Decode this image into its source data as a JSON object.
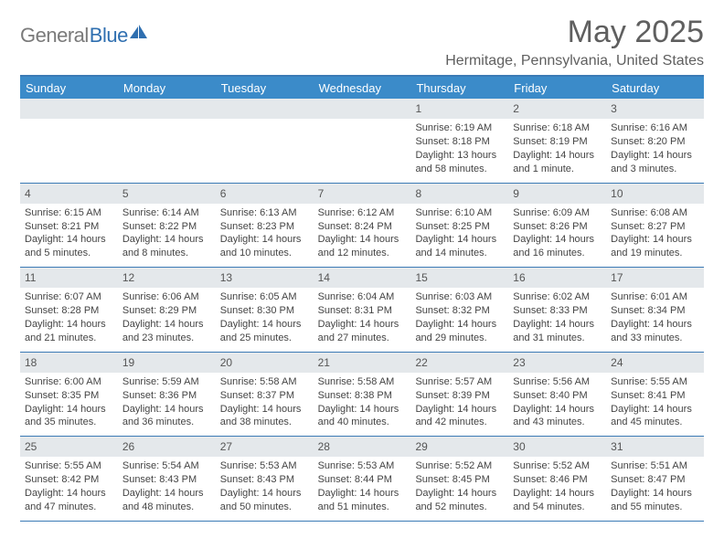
{
  "logo": {
    "word1": "General",
    "word2": "Blue"
  },
  "title": "May 2025",
  "location": "Hermitage, Pennsylvania, United States",
  "colors": {
    "header_bg": "#3b8bc9",
    "divider": "#3b7ab5",
    "band_bg": "#e4e8eb",
    "logo_gray": "#7a7a7a",
    "logo_blue": "#2f6fb0",
    "text": "#5f5f5f"
  },
  "day_labels": [
    "Sunday",
    "Monday",
    "Tuesday",
    "Wednesday",
    "Thursday",
    "Friday",
    "Saturday"
  ],
  "weeks": [
    [
      {
        "n": "",
        "lines": []
      },
      {
        "n": "",
        "lines": []
      },
      {
        "n": "",
        "lines": []
      },
      {
        "n": "",
        "lines": []
      },
      {
        "n": "1",
        "lines": [
          "Sunrise: 6:19 AM",
          "Sunset: 8:18 PM",
          "Daylight: 13 hours",
          "and 58 minutes."
        ]
      },
      {
        "n": "2",
        "lines": [
          "Sunrise: 6:18 AM",
          "Sunset: 8:19 PM",
          "Daylight: 14 hours",
          "and 1 minute."
        ]
      },
      {
        "n": "3",
        "lines": [
          "Sunrise: 6:16 AM",
          "Sunset: 8:20 PM",
          "Daylight: 14 hours",
          "and 3 minutes."
        ]
      }
    ],
    [
      {
        "n": "4",
        "lines": [
          "Sunrise: 6:15 AM",
          "Sunset: 8:21 PM",
          "Daylight: 14 hours",
          "and 5 minutes."
        ]
      },
      {
        "n": "5",
        "lines": [
          "Sunrise: 6:14 AM",
          "Sunset: 8:22 PM",
          "Daylight: 14 hours",
          "and 8 minutes."
        ]
      },
      {
        "n": "6",
        "lines": [
          "Sunrise: 6:13 AM",
          "Sunset: 8:23 PM",
          "Daylight: 14 hours",
          "and 10 minutes."
        ]
      },
      {
        "n": "7",
        "lines": [
          "Sunrise: 6:12 AM",
          "Sunset: 8:24 PM",
          "Daylight: 14 hours",
          "and 12 minutes."
        ]
      },
      {
        "n": "8",
        "lines": [
          "Sunrise: 6:10 AM",
          "Sunset: 8:25 PM",
          "Daylight: 14 hours",
          "and 14 minutes."
        ]
      },
      {
        "n": "9",
        "lines": [
          "Sunrise: 6:09 AM",
          "Sunset: 8:26 PM",
          "Daylight: 14 hours",
          "and 16 minutes."
        ]
      },
      {
        "n": "10",
        "lines": [
          "Sunrise: 6:08 AM",
          "Sunset: 8:27 PM",
          "Daylight: 14 hours",
          "and 19 minutes."
        ]
      }
    ],
    [
      {
        "n": "11",
        "lines": [
          "Sunrise: 6:07 AM",
          "Sunset: 8:28 PM",
          "Daylight: 14 hours",
          "and 21 minutes."
        ]
      },
      {
        "n": "12",
        "lines": [
          "Sunrise: 6:06 AM",
          "Sunset: 8:29 PM",
          "Daylight: 14 hours",
          "and 23 minutes."
        ]
      },
      {
        "n": "13",
        "lines": [
          "Sunrise: 6:05 AM",
          "Sunset: 8:30 PM",
          "Daylight: 14 hours",
          "and 25 minutes."
        ]
      },
      {
        "n": "14",
        "lines": [
          "Sunrise: 6:04 AM",
          "Sunset: 8:31 PM",
          "Daylight: 14 hours",
          "and 27 minutes."
        ]
      },
      {
        "n": "15",
        "lines": [
          "Sunrise: 6:03 AM",
          "Sunset: 8:32 PM",
          "Daylight: 14 hours",
          "and 29 minutes."
        ]
      },
      {
        "n": "16",
        "lines": [
          "Sunrise: 6:02 AM",
          "Sunset: 8:33 PM",
          "Daylight: 14 hours",
          "and 31 minutes."
        ]
      },
      {
        "n": "17",
        "lines": [
          "Sunrise: 6:01 AM",
          "Sunset: 8:34 PM",
          "Daylight: 14 hours",
          "and 33 minutes."
        ]
      }
    ],
    [
      {
        "n": "18",
        "lines": [
          "Sunrise: 6:00 AM",
          "Sunset: 8:35 PM",
          "Daylight: 14 hours",
          "and 35 minutes."
        ]
      },
      {
        "n": "19",
        "lines": [
          "Sunrise: 5:59 AM",
          "Sunset: 8:36 PM",
          "Daylight: 14 hours",
          "and 36 minutes."
        ]
      },
      {
        "n": "20",
        "lines": [
          "Sunrise: 5:58 AM",
          "Sunset: 8:37 PM",
          "Daylight: 14 hours",
          "and 38 minutes."
        ]
      },
      {
        "n": "21",
        "lines": [
          "Sunrise: 5:58 AM",
          "Sunset: 8:38 PM",
          "Daylight: 14 hours",
          "and 40 minutes."
        ]
      },
      {
        "n": "22",
        "lines": [
          "Sunrise: 5:57 AM",
          "Sunset: 8:39 PM",
          "Daylight: 14 hours",
          "and 42 minutes."
        ]
      },
      {
        "n": "23",
        "lines": [
          "Sunrise: 5:56 AM",
          "Sunset: 8:40 PM",
          "Daylight: 14 hours",
          "and 43 minutes."
        ]
      },
      {
        "n": "24",
        "lines": [
          "Sunrise: 5:55 AM",
          "Sunset: 8:41 PM",
          "Daylight: 14 hours",
          "and 45 minutes."
        ]
      }
    ],
    [
      {
        "n": "25",
        "lines": [
          "Sunrise: 5:55 AM",
          "Sunset: 8:42 PM",
          "Daylight: 14 hours",
          "and 47 minutes."
        ]
      },
      {
        "n": "26",
        "lines": [
          "Sunrise: 5:54 AM",
          "Sunset: 8:43 PM",
          "Daylight: 14 hours",
          "and 48 minutes."
        ]
      },
      {
        "n": "27",
        "lines": [
          "Sunrise: 5:53 AM",
          "Sunset: 8:43 PM",
          "Daylight: 14 hours",
          "and 50 minutes."
        ]
      },
      {
        "n": "28",
        "lines": [
          "Sunrise: 5:53 AM",
          "Sunset: 8:44 PM",
          "Daylight: 14 hours",
          "and 51 minutes."
        ]
      },
      {
        "n": "29",
        "lines": [
          "Sunrise: 5:52 AM",
          "Sunset: 8:45 PM",
          "Daylight: 14 hours",
          "and 52 minutes."
        ]
      },
      {
        "n": "30",
        "lines": [
          "Sunrise: 5:52 AM",
          "Sunset: 8:46 PM",
          "Daylight: 14 hours",
          "and 54 minutes."
        ]
      },
      {
        "n": "31",
        "lines": [
          "Sunrise: 5:51 AM",
          "Sunset: 8:47 PM",
          "Daylight: 14 hours",
          "and 55 minutes."
        ]
      }
    ]
  ]
}
